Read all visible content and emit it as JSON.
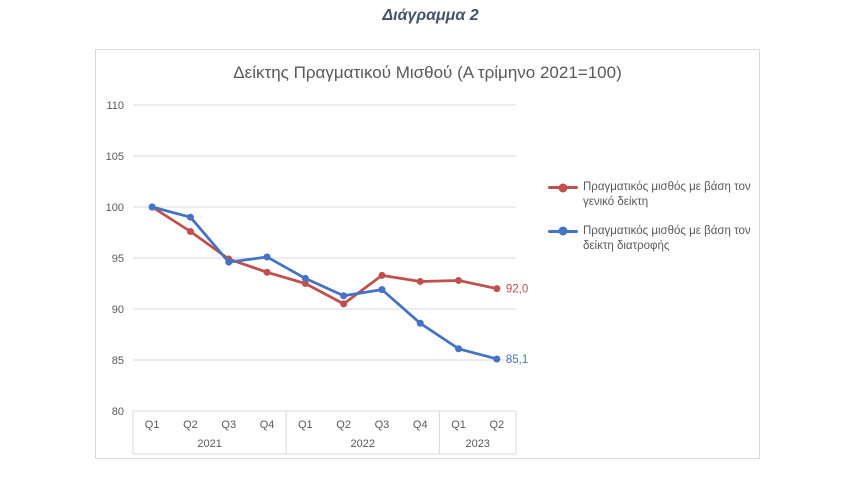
{
  "page": {
    "title": "Διάγραμμα 2"
  },
  "chart": {
    "colors": {
      "series_general": "#C0504D",
      "series_food": "#4472C4",
      "grid": "#D9D9D9",
      "axis_text": "#595959",
      "title_text": "#595959",
      "page_title_text": "#44546A",
      "frame_border": "#D9D9D9"
    }
  },
  "chart_data": {
    "type": "line",
    "title": "Δείκτης Πραγματικού Μισθού (Α τρίμηνο 2021=100)",
    "categories": [
      "Q1",
      "Q2",
      "Q3",
      "Q4",
      "Q1",
      "Q2",
      "Q3",
      "Q4",
      "Q1",
      "Q2"
    ],
    "year_groups": [
      {
        "label": "2021",
        "span": 4
      },
      {
        "label": "2022",
        "span": 4
      },
      {
        "label": "2023",
        "span": 2
      }
    ],
    "series": [
      {
        "name": "Πραγματικός μισθός με βάση τον γενικό δείκτη",
        "color": "#C0504D",
        "values": [
          100.0,
          97.6,
          94.9,
          93.6,
          92.5,
          90.5,
          93.3,
          92.7,
          92.8,
          92.0
        ],
        "end_label": "92,0"
      },
      {
        "name": "Πραγματικός μισθός με βάση τον δείκτη διατροφής",
        "color": "#4472C4",
        "values": [
          100.0,
          99.0,
          94.6,
          95.1,
          93.0,
          91.3,
          91.9,
          88.6,
          86.1,
          85.1
        ],
        "end_label": "85,1"
      }
    ],
    "ylim": [
      80,
      110
    ],
    "yticks": [
      110,
      105,
      100,
      95,
      90,
      85,
      80
    ],
    "ytick_step": 5,
    "grid": true,
    "legend_position": "right",
    "xlabel": "",
    "ylabel": ""
  }
}
